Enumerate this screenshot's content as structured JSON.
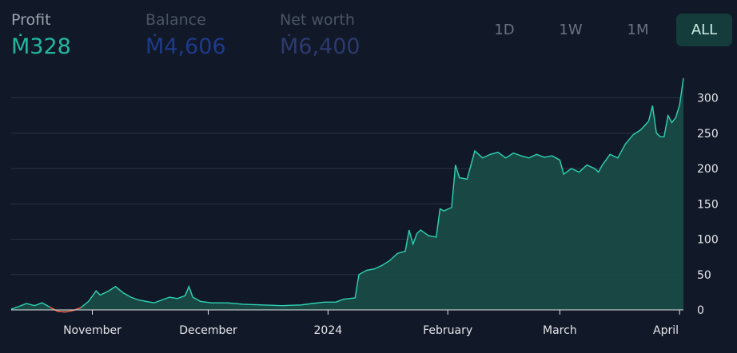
{
  "stats": {
    "profit": {
      "label": "Profit",
      "value": "Ṁ328",
      "label_color": "#9ca3af",
      "value_color": "#22b8a0"
    },
    "balance": {
      "label": "Balance",
      "value": "Ṁ4,606",
      "label_color": "#4b5563",
      "value_color": "#1e3a8a"
    },
    "net_worth": {
      "label": "Net worth",
      "value": "Ṁ6,400",
      "label_color": "#4b5563",
      "value_color": "#2d3a6e"
    }
  },
  "ranges": [
    {
      "label": "1D",
      "active": false
    },
    {
      "label": "1W",
      "active": false
    },
    {
      "label": "1M",
      "active": false
    },
    {
      "label": "ALL",
      "active": true
    }
  ],
  "colors": {
    "line": "#2dd4b4",
    "fill": "#1a4a44",
    "negative": "#e5533d",
    "grid": "#2b3444",
    "axis": "#e5e7eb"
  },
  "chart_data": {
    "type": "area",
    "ylim": [
      0,
      330
    ],
    "yticks": [
      0,
      50,
      100,
      150,
      200,
      250,
      300
    ],
    "xlim": [
      "2023-10-11",
      "2024-04-02"
    ],
    "xticks": [
      {
        "label": "November",
        "date": "2023-11-01"
      },
      {
        "label": "December",
        "date": "2023-12-01"
      },
      {
        "label": "2024",
        "date": "2024-01-01"
      },
      {
        "label": "February",
        "date": "2024-02-01"
      },
      {
        "label": "March",
        "date": "2024-03-01"
      },
      {
        "label": "April",
        "date": "2024-04-01"
      }
    ],
    "series": [
      {
        "points": [
          [
            "2023-10-11",
            1
          ],
          [
            "2023-10-13",
            5
          ],
          [
            "2023-10-15",
            9
          ],
          [
            "2023-10-17",
            6
          ],
          [
            "2023-10-19",
            10
          ],
          [
            "2023-10-21",
            4
          ],
          [
            "2023-10-23",
            -2
          ],
          [
            "2023-10-25",
            -3
          ],
          [
            "2023-10-27",
            -1
          ],
          [
            "2023-10-29",
            3
          ],
          [
            "2023-10-31",
            12
          ],
          [
            "2023-11-02",
            27
          ],
          [
            "2023-11-03",
            21
          ],
          [
            "2023-11-05",
            26
          ],
          [
            "2023-11-07",
            33
          ],
          [
            "2023-11-09",
            24
          ],
          [
            "2023-11-11",
            18
          ],
          [
            "2023-11-13",
            14
          ],
          [
            "2023-11-15",
            12
          ],
          [
            "2023-11-17",
            10
          ],
          [
            "2023-11-19",
            14
          ],
          [
            "2023-11-21",
            18
          ],
          [
            "2023-11-23",
            16
          ],
          [
            "2023-11-25",
            20
          ],
          [
            "2023-11-26",
            33
          ],
          [
            "2023-11-27",
            18
          ],
          [
            "2023-11-29",
            12
          ],
          [
            "2023-12-02",
            10
          ],
          [
            "2023-12-06",
            10
          ],
          [
            "2023-12-10",
            8
          ],
          [
            "2023-12-15",
            7
          ],
          [
            "2023-12-20",
            6
          ],
          [
            "2023-12-25",
            7
          ],
          [
            "2023-12-28",
            9
          ],
          [
            "2023-12-31",
            11
          ],
          [
            "2024-01-03",
            11
          ],
          [
            "2024-01-05",
            15
          ],
          [
            "2024-01-08",
            17
          ],
          [
            "2024-01-09",
            50
          ],
          [
            "2024-01-11",
            56
          ],
          [
            "2024-01-13",
            58
          ],
          [
            "2024-01-15",
            63
          ],
          [
            "2024-01-17",
            70
          ],
          [
            "2024-01-19",
            80
          ],
          [
            "2024-01-21",
            83
          ],
          [
            "2024-01-22",
            113
          ],
          [
            "2024-01-23",
            93
          ],
          [
            "2024-01-24",
            108
          ],
          [
            "2024-01-25",
            113
          ],
          [
            "2024-01-27",
            105
          ],
          [
            "2024-01-29",
            103
          ],
          [
            "2024-01-30",
            143
          ],
          [
            "2024-01-31",
            140
          ],
          [
            "2024-02-02",
            145
          ],
          [
            "2024-02-03",
            205
          ],
          [
            "2024-02-04",
            187
          ],
          [
            "2024-02-06",
            185
          ],
          [
            "2024-02-08",
            225
          ],
          [
            "2024-02-10",
            215
          ],
          [
            "2024-02-12",
            220
          ],
          [
            "2024-02-14",
            223
          ],
          [
            "2024-02-16",
            215
          ],
          [
            "2024-02-18",
            222
          ],
          [
            "2024-02-20",
            218
          ],
          [
            "2024-02-22",
            215
          ],
          [
            "2024-02-24",
            220
          ],
          [
            "2024-02-26",
            216
          ],
          [
            "2024-02-28",
            218
          ],
          [
            "2024-03-01",
            212
          ],
          [
            "2024-03-02",
            192
          ],
          [
            "2024-03-04",
            200
          ],
          [
            "2024-03-06",
            195
          ],
          [
            "2024-03-08",
            205
          ],
          [
            "2024-03-10",
            200
          ],
          [
            "2024-03-11",
            195
          ],
          [
            "2024-03-12",
            205
          ],
          [
            "2024-03-14",
            220
          ],
          [
            "2024-03-16",
            215
          ],
          [
            "2024-03-18",
            235
          ],
          [
            "2024-03-20",
            248
          ],
          [
            "2024-03-22",
            255
          ],
          [
            "2024-03-24",
            267
          ],
          [
            "2024-03-25",
            289
          ],
          [
            "2024-03-26",
            250
          ],
          [
            "2024-03-27",
            245
          ],
          [
            "2024-03-28",
            245
          ],
          [
            "2024-03-29",
            275
          ],
          [
            "2024-03-30",
            265
          ],
          [
            "2024-03-31",
            272
          ],
          [
            "2024-04-01",
            290
          ],
          [
            "2024-04-02",
            328
          ]
        ]
      }
    ]
  }
}
